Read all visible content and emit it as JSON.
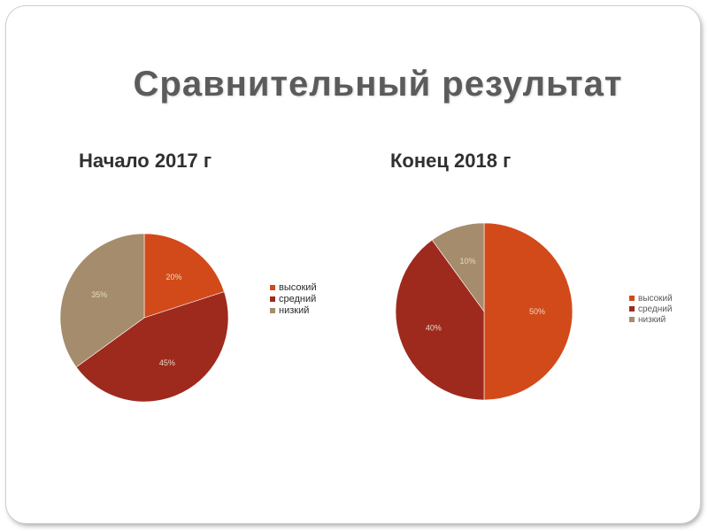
{
  "title": "Сравнительный результат",
  "colors": {
    "high": "#d24a1a",
    "medium": "#9e2a1e",
    "low": "#a48c6c"
  },
  "chart_data": [
    {
      "type": "pie",
      "title": "Начало 2017 г",
      "categories": [
        "высокий",
        "средний",
        "низкий"
      ],
      "values": [
        20,
        45,
        35
      ],
      "labels": [
        "20%",
        "45%",
        "35%"
      ],
      "legend": [
        "высокий",
        "средний",
        "низкий"
      ],
      "legend_position": "right"
    },
    {
      "type": "pie",
      "title": "Конец 2018 г",
      "categories": [
        "высокий",
        "средний",
        "низкий"
      ],
      "values": [
        50,
        40,
        10
      ],
      "labels": [
        "50%",
        "40%",
        "10%"
      ],
      "legend": [
        "высокий",
        "средний",
        "низкий"
      ],
      "legend_position": "right"
    }
  ]
}
